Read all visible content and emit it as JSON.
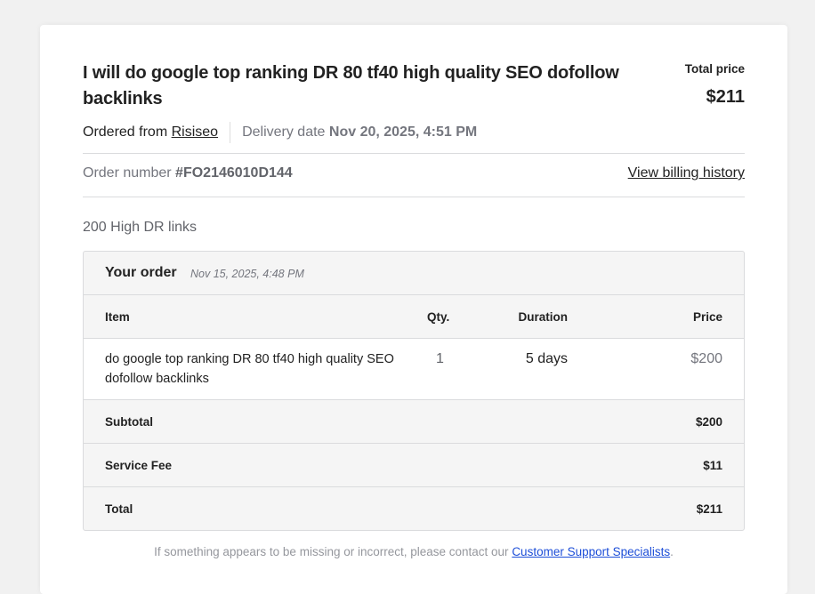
{
  "order": {
    "title": "I will do google top ranking DR 80 tf40 high quality SEO dofollow backlinks",
    "total_price_label": "Total price",
    "total_price": "$211",
    "ordered_from_label": "Ordered from",
    "seller": "Risiseo",
    "delivery_label": "Delivery date",
    "delivery_date": "Nov 20, 2025, 4:51 PM",
    "order_number_label": "Order number",
    "order_number": "#FO2146010D144",
    "billing_link": "View billing history",
    "package": "200 High DR links"
  },
  "table": {
    "title": "Your order",
    "date": "Nov 15, 2025, 4:48 PM",
    "headers": {
      "item": "Item",
      "qty": "Qty.",
      "duration": "Duration",
      "price": "Price"
    },
    "items": [
      {
        "item": "do google top ranking DR 80 tf40 high quality SEO dofollow backlinks",
        "qty": "1",
        "duration": "5 days",
        "price": "$200"
      }
    ],
    "summary": [
      {
        "label": "Subtotal",
        "value": "$200"
      },
      {
        "label": "Service Fee",
        "value": "$11"
      },
      {
        "label": "Total",
        "value": "$211"
      }
    ]
  },
  "footer": {
    "text": "If something appears to be missing or incorrect, please contact our ",
    "link": "Customer Support Specialists",
    "end": "."
  }
}
